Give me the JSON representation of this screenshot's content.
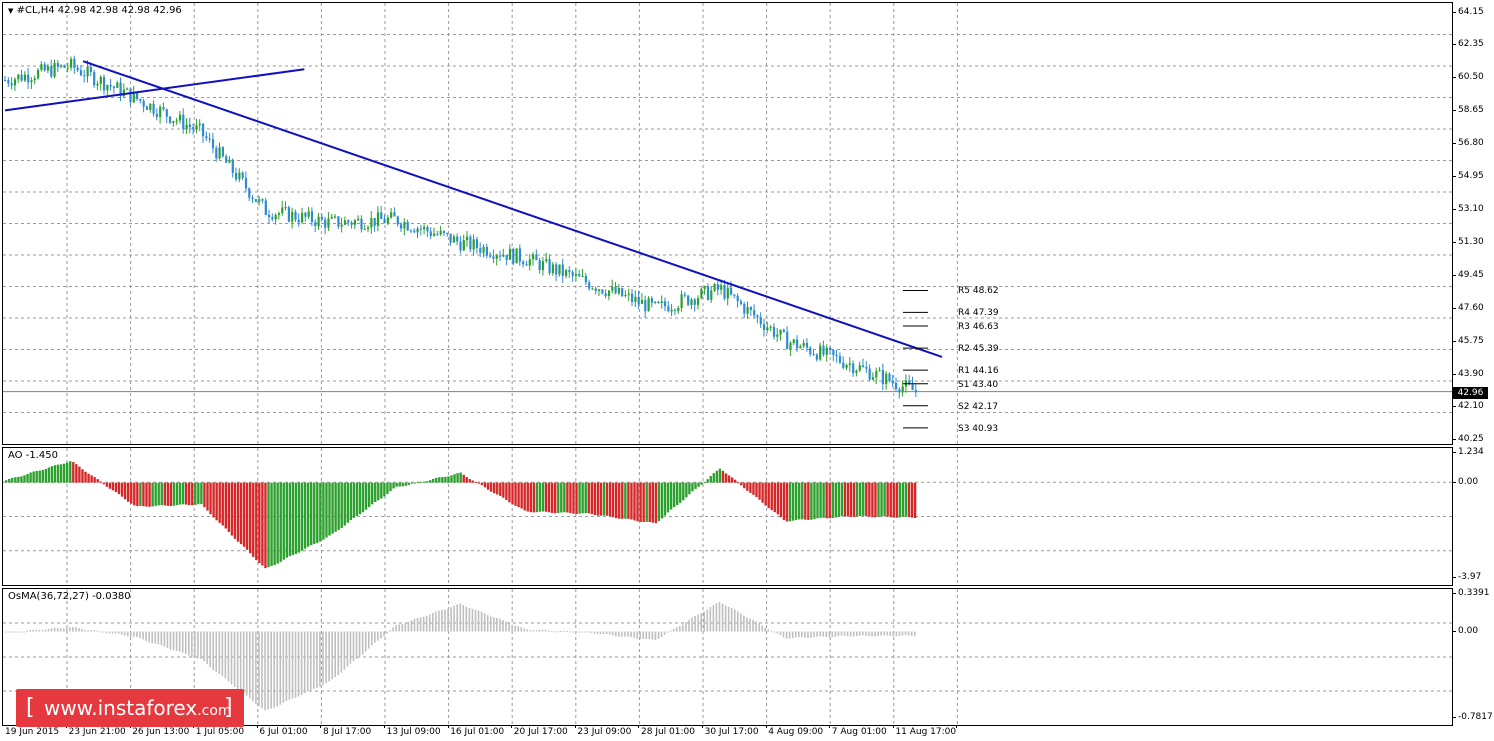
{
  "main_chart": {
    "label": "#CL,H4  42.98 42.98 42.98 42.96",
    "menu_icon": "triangle-down-icon",
    "y_ticks": [
      "64.15",
      "62.35",
      "60.50",
      "58.65",
      "56.80",
      "54.95",
      "53.10",
      "51.30",
      "49.45",
      "47.60",
      "45.75",
      "43.90",
      "42.10",
      "40.25"
    ],
    "current_price": "42.96",
    "pivot_levels": [
      {
        "label": "R5 48.62",
        "value": 48.62
      },
      {
        "label": "R4 47.39",
        "value": 47.39
      },
      {
        "label": "R3 46.63",
        "value": 46.63
      },
      {
        "label": "R2 45.39",
        "value": 45.39
      },
      {
        "label": "R1 44.16",
        "value": 44.16
      },
      {
        "label": "S1 43.40",
        "value": 43.4
      },
      {
        "label": "S2 42.17",
        "value": 42.17
      },
      {
        "label": "S3 40.93",
        "value": 40.93
      }
    ]
  },
  "ao_panel": {
    "label": "AO -1.450",
    "y_ticks": [
      "1.234",
      "0.00",
      "-3.97"
    ]
  },
  "osma_panel": {
    "label": "OsMA(36,72,27) -0.0380",
    "y_ticks": [
      "0.3391",
      "0.00",
      "-0.7817"
    ]
  },
  "x_axis": [
    "19 Jun 2015",
    "23 Jun 21:00",
    "26 Jun 13:00",
    "1 Jul 05:00",
    "6 Jul 01:00",
    "8 Jul 17:00",
    "13 Jul 09:00",
    "16 Jul 01:00",
    "20 Jul 17:00",
    "23 Jul 09:00",
    "28 Jul 01:00",
    "30 Jul 17:00",
    "4 Aug 09:00",
    "7 Aug 01:00",
    "11 Aug 17:00"
  ],
  "watermark": {
    "bracket_left": "[",
    "domain": "www.instaforex",
    "tld": ".com",
    "bracket_right": "]"
  },
  "colors": {
    "bull": "#2ca02c",
    "bear": "#d62728",
    "candle_body": "#2d8bd4",
    "trendline": "#1010c0",
    "histogram_gray": "#bfbfbf",
    "watermark_bg": "#e5393f"
  },
  "chart_data": [
    {
      "type": "candlestick",
      "symbol": "#CL",
      "timeframe": "H4",
      "ylim": [
        40.25,
        64.15
      ],
      "close_path": [
        {
          "t": "19 Jun 2015",
          "v": 60.4
        },
        {
          "t": "23 Jun 21:00",
          "v": 61.2
        },
        {
          "t": "26 Jun 13:00",
          "v": 59.4
        },
        {
          "t": "1 Jul 05:00",
          "v": 57.5
        },
        {
          "t": "6 Jul 01:00",
          "v": 53.1
        },
        {
          "t": "8 Jul 17:00",
          "v": 52.4
        },
        {
          "t": "13 Jul 09:00",
          "v": 52.6
        },
        {
          "t": "16 Jul 01:00",
          "v": 51.3
        },
        {
          "t": "20 Jul 17:00",
          "v": 50.4
        },
        {
          "t": "23 Jul 09:00",
          "v": 49.0
        },
        {
          "t": "28 Jul 01:00",
          "v": 47.6
        },
        {
          "t": "30 Jul 17:00",
          "v": 48.7
        },
        {
          "t": "4 Aug 09:00",
          "v": 45.8
        },
        {
          "t": "7 Aug 01:00",
          "v": 44.5
        },
        {
          "t": "11 Aug 17:00",
          "v": 42.96
        }
      ]
    },
    {
      "type": "bar",
      "name": "AO",
      "ylim": [
        -3.97,
        1.234
      ],
      "key_values": [
        {
          "t": "19 Jun 2015",
          "v": 0.1
        },
        {
          "t": "23 Jun 21:00",
          "v": 0.9
        },
        {
          "t": "26 Jun 13:00",
          "v": -1.0
        },
        {
          "t": "1 Jul 05:00",
          "v": -0.9
        },
        {
          "t": "6 Jul 01:00",
          "v": -3.6
        },
        {
          "t": "8 Jul 17:00",
          "v": -2.2
        },
        {
          "t": "13 Jul 09:00",
          "v": -0.2
        },
        {
          "t": "16 Jul 01:00",
          "v": 0.4
        },
        {
          "t": "20 Jul 17:00",
          "v": -1.2
        },
        {
          "t": "23 Jul 09:00",
          "v": -1.3
        },
        {
          "t": "28 Jul 01:00",
          "v": -1.7
        },
        {
          "t": "30 Jul 17:00",
          "v": 0.6
        },
        {
          "t": "4 Aug 09:00",
          "v": -1.6
        },
        {
          "t": "7 Aug 01:00",
          "v": -1.4
        },
        {
          "t": "11 Aug 17:00",
          "v": -1.45
        }
      ]
    },
    {
      "type": "bar",
      "name": "OsMA",
      "ylim": [
        -0.7817,
        0.3391
      ],
      "key_values": [
        {
          "t": "19 Jun 2015",
          "v": -0.01
        },
        {
          "t": "23 Jun 21:00",
          "v": 0.04
        },
        {
          "t": "26 Jun 13:00",
          "v": -0.05
        },
        {
          "t": "1 Jul 05:00",
          "v": -0.25
        },
        {
          "t": "6 Jul 01:00",
          "v": -0.72
        },
        {
          "t": "8 Jul 17:00",
          "v": -0.45
        },
        {
          "t": "13 Jul 09:00",
          "v": 0.05
        },
        {
          "t": "16 Jul 01:00",
          "v": 0.25
        },
        {
          "t": "20 Jul 17:00",
          "v": 0.02
        },
        {
          "t": "23 Jul 09:00",
          "v": -0.01
        },
        {
          "t": "28 Jul 01:00",
          "v": -0.08
        },
        {
          "t": "30 Jul 17:00",
          "v": 0.27
        },
        {
          "t": "4 Aug 09:00",
          "v": -0.06
        },
        {
          "t": "7 Aug 01:00",
          "v": -0.04
        },
        {
          "t": "11 Aug 17:00",
          "v": -0.038
        }
      ]
    }
  ]
}
